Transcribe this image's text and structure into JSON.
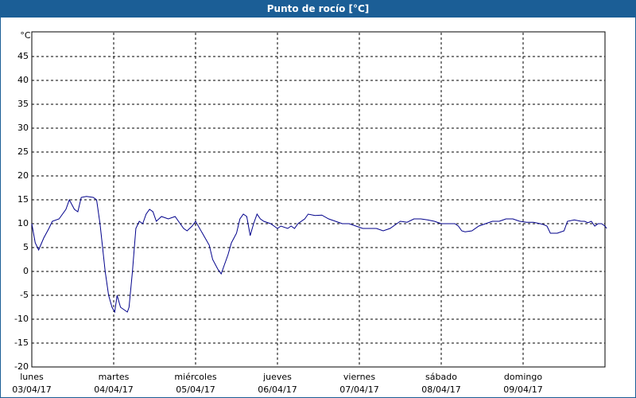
{
  "chart_data": {
    "type": "line",
    "title": "Punto de rocío [°C]",
    "y_unit": "°C",
    "xlim": [
      0,
      168
    ],
    "ylim": [
      -20,
      50
    ],
    "yticks": [
      -20,
      -15,
      -10,
      -5,
      0,
      5,
      10,
      15,
      20,
      25,
      30,
      35,
      40,
      45
    ],
    "xticks": [
      {
        "value": 0,
        "label": "lunes",
        "date": "03/04/17"
      },
      {
        "value": 24,
        "label": "martes",
        "date": "04/04/17"
      },
      {
        "value": 48,
        "label": "miércoles",
        "date": "05/04/17"
      },
      {
        "value": 72,
        "label": "jueves",
        "date": "06/04/17"
      },
      {
        "value": 96,
        "label": "viernes",
        "date": "07/04/17"
      },
      {
        "value": 120,
        "label": "sábado",
        "date": "08/04/17"
      },
      {
        "value": 144,
        "label": "domingo",
        "date": "09/04/17"
      }
    ],
    "grid": true,
    "series": [
      {
        "color": "#00008b",
        "x": [
          0,
          1,
          2,
          3.5,
          5,
          6,
          8,
          10,
          11,
          12.5,
          13.5,
          14.5,
          16,
          18,
          19,
          20,
          21.5,
          22.5,
          23.5,
          24.3,
          25,
          26,
          27,
          28,
          28.5,
          29.5,
          30.5,
          31.5,
          32.5,
          33.5,
          34.5,
          35.5,
          36.5,
          38,
          40,
          42,
          43,
          44.5,
          45.5,
          47,
          48,
          50,
          52,
          53,
          54.5,
          55.5,
          56.5,
          57.5,
          58.5,
          60,
          61,
          62,
          63,
          64,
          65,
          66,
          67,
          68,
          70,
          71,
          72,
          73,
          75,
          76,
          77,
          78,
          80,
          81,
          83,
          85,
          87,
          89,
          91,
          93,
          95,
          97,
          99,
          101,
          103,
          105,
          107,
          108,
          110,
          112,
          114,
          116,
          118,
          120,
          122,
          124,
          125,
          126,
          127,
          129,
          131,
          133,
          135,
          137,
          139,
          141,
          143,
          145,
          147,
          149,
          150,
          151,
          152,
          154,
          156,
          157,
          159,
          161,
          162,
          163,
          164,
          165,
          166,
          167,
          168,
          168.5
        ],
        "values": [
          10,
          6,
          4.5,
          7,
          9,
          10.5,
          11,
          13,
          15,
          13,
          12.5,
          15.5,
          15.7,
          15.5,
          15,
          10,
          0,
          -5,
          -7.5,
          -8.5,
          -5,
          -7.5,
          -8,
          -8.5,
          -7.5,
          0,
          9,
          10.5,
          10,
          12,
          13,
          12.5,
          10.5,
          11.5,
          11,
          11.5,
          10.5,
          9,
          8.5,
          9.5,
          10.5,
          8,
          5.5,
          2.5,
          0.5,
          -0.5,
          1.5,
          3.5,
          6,
          8,
          11,
          12,
          11.5,
          7.5,
          10,
          12,
          11,
          10.5,
          10,
          9.5,
          9,
          9.5,
          9,
          9.5,
          9,
          10,
          11,
          12,
          11.7,
          11.8,
          11,
          10.5,
          10,
          10,
          9.5,
          9,
          9,
          9,
          8.5,
          9,
          10,
          10.5,
          10.3,
          11,
          11,
          10.8,
          10.5,
          10,
          10,
          10,
          9.5,
          8.5,
          8.3,
          8.5,
          9.5,
          10,
          10.5,
          10.5,
          11,
          11,
          10.5,
          10.3,
          10.3,
          10,
          9.8,
          9.5,
          8,
          8,
          8.5,
          10.5,
          10.8,
          10.5,
          10.5,
          10.2,
          10.5,
          9.5,
          10,
          10,
          9.5,
          9
        ]
      }
    ]
  }
}
